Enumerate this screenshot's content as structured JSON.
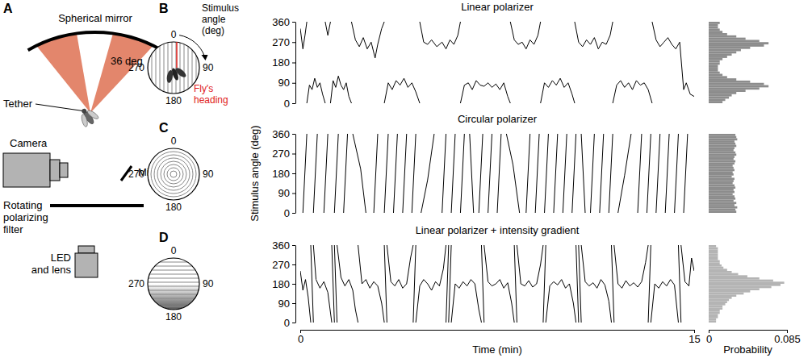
{
  "diagram": {
    "letter": "A",
    "spherical_mirror": "Spherical mirror",
    "wedge_angle": "36 deg",
    "tether": "Tether",
    "camera": "Camera",
    "mirror": "Mirror",
    "filter": [
      "Rotating",
      "polarizing",
      "filter"
    ],
    "led": [
      "LED",
      "and lens"
    ]
  },
  "insets": [
    {
      "letter": "B",
      "angle_labels": [
        0,
        90,
        180,
        270
      ],
      "stimulus_label": [
        "Stimulus",
        "angle",
        "(deg)"
      ],
      "heading_label": [
        "Fly's",
        "heading"
      ]
    },
    {
      "letter": "C",
      "angle_labels": [
        0,
        90,
        180,
        270
      ]
    },
    {
      "letter": "D",
      "angle_labels": [
        0,
        90,
        180,
        270
      ]
    }
  ],
  "chart_data": [
    {
      "type": "line",
      "title": "Linear polarizer",
      "color": "#000000",
      "tick_labels": "y",
      "xlim": [
        0,
        15
      ],
      "ylim": [
        0,
        360
      ],
      "yticks": [
        0,
        90,
        180,
        270,
        360
      ],
      "x": [
        0,
        0.1,
        0.18,
        0.25,
        0.25,
        0.25,
        0.35,
        0.45,
        0.55,
        0.65,
        0.75,
        0.85,
        0.95,
        0.95,
        0.95,
        1.05,
        1.15,
        1.15,
        1.15,
        1.25,
        1.35,
        1.45,
        1.55,
        1.65,
        1.75,
        1.85,
        1.95,
        1.95,
        1.95,
        2.1,
        2.25,
        2.4,
        2.55,
        2.7,
        2.85,
        2.95,
        3.1,
        3.2,
        3.2,
        3.2,
        3.35,
        3.5,
        3.65,
        3.8,
        3.95,
        4.1,
        4.25,
        4.4,
        4.55,
        4.55,
        4.55,
        4.7,
        4.85,
        5,
        5.2,
        5.4,
        5.55,
        5.7,
        5.85,
        6,
        6.1,
        6.1,
        6.1,
        6.25,
        6.4,
        6.55,
        6.7,
        6.85,
        7,
        7.15,
        7.3,
        7.45,
        7.6,
        7.75,
        7.9,
        8,
        8,
        8,
        8.15,
        8.3,
        8.45,
        8.6,
        8.75,
        8.9,
        9.05,
        9.15,
        9.15,
        9.15,
        9.3,
        9.45,
        9.6,
        9.75,
        9.9,
        10.05,
        10.2,
        10.35,
        10.45,
        10.45,
        10.45,
        10.6,
        10.75,
        10.9,
        11.05,
        11.2,
        11.35,
        11.5,
        11.65,
        11.8,
        11.9,
        11.9,
        11.9,
        12.05,
        12.2,
        12.35,
        12.5,
        12.65,
        12.8,
        12.95,
        13.1,
        13.25,
        13.4,
        13.4,
        13.4,
        13.55,
        13.7,
        13.85,
        14,
        14.15,
        14.3,
        14.45,
        14.6,
        14.7,
        14.85,
        15
      ],
      "values": [
        330,
        240,
        300,
        360,
        null,
        0,
        80,
        60,
        110,
        70,
        90,
        40,
        0,
        null,
        360,
        300,
        360,
        null,
        0,
        100,
        70,
        120,
        80,
        60,
        90,
        30,
        0,
        null,
        360,
        280,
        250,
        290,
        240,
        270,
        200,
        260,
        330,
        360,
        null,
        0,
        90,
        60,
        100,
        80,
        110,
        70,
        90,
        50,
        0,
        null,
        360,
        270,
        260,
        280,
        250,
        270,
        240,
        280,
        260,
        300,
        360,
        null,
        0,
        80,
        90,
        60,
        100,
        80,
        75,
        90,
        70,
        85,
        60,
        90,
        30,
        0,
        null,
        360,
        280,
        260,
        270,
        240,
        280,
        260,
        300,
        360,
        null,
        0,
        90,
        70,
        100,
        80,
        110,
        70,
        90,
        40,
        0,
        null,
        360,
        270,
        250,
        280,
        260,
        290,
        240,
        270,
        260,
        300,
        360,
        null,
        0,
        80,
        100,
        70,
        90,
        60,
        100,
        80,
        90,
        60,
        0,
        null,
        360,
        280,
        250,
        270,
        290,
        260,
        240,
        270,
        60,
        90,
        40,
        30
      ]
    },
    {
      "type": "histogram",
      "orientation": "horizontal",
      "color": "#8c8c8c",
      "tick_labels": false,
      "xlim": [
        0,
        0.085
      ],
      "ylim": [
        0,
        360
      ],
      "bins": [
        0,
        10,
        20,
        30,
        40,
        50,
        60,
        70,
        80,
        90,
        100,
        110,
        120,
        130,
        140,
        150,
        160,
        170,
        180,
        190,
        200,
        210,
        220,
        230,
        240,
        250,
        260,
        270,
        280,
        290,
        300,
        310,
        320,
        330,
        340,
        350,
        360
      ],
      "values": [
        0.015,
        0.018,
        0.022,
        0.025,
        0.03,
        0.04,
        0.055,
        0.065,
        0.06,
        0.045,
        0.03,
        0.02,
        0.015,
        0.012,
        0.01,
        0.01,
        0.01,
        0.012,
        0.012,
        0.015,
        0.02,
        0.025,
        0.03,
        0.035,
        0.045,
        0.06,
        0.065,
        0.055,
        0.04,
        0.03,
        0.02,
        0.015,
        0.012,
        0.01,
        0.01,
        0.012
      ]
    },
    {
      "type": "line",
      "title": "Circular polarizer",
      "ylabel": "Stimulus angle (deg)",
      "color": "#000000",
      "tick_labels": "y",
      "xlim": [
        0,
        15
      ],
      "ylim": [
        0,
        360
      ],
      "yticks": [
        0,
        90,
        180,
        270,
        360
      ],
      "x": [
        0.1,
        0.25,
        0.25,
        0.5,
        0.65,
        0.65,
        0.9,
        1.05,
        1.05,
        1.3,
        1.45,
        1.45,
        1.65,
        1.8,
        1.8,
        2,
        2.3,
        2.5,
        2.5,
        2.8,
        2.95,
        2.95,
        3.2,
        3.35,
        3.35,
        3.55,
        3.7,
        3.7,
        3.9,
        4.05,
        4.05,
        4.25,
        4.4,
        4.4,
        4.6,
        4.85,
        5.1,
        5.1,
        5.4,
        5.55,
        5.55,
        5.75,
        5.9,
        5.9,
        6.1,
        6.25,
        6.25,
        6.45,
        6.6,
        6.6,
        6.8,
        6.95,
        6.95,
        7.15,
        7.3,
        7.3,
        7.5,
        7.65,
        7.65,
        7.85,
        8.1,
        8.35,
        8.35,
        8.6,
        8.75,
        8.75,
        8.95,
        9.1,
        9.1,
        9.3,
        9.45,
        9.45,
        9.65,
        9.8,
        9.8,
        10,
        10.15,
        10.15,
        10.35,
        10.5,
        10.5,
        10.7,
        10.85,
        10.85,
        11.05,
        11.2,
        11.2,
        11.4,
        11.55,
        11.55,
        11.75,
        11.9,
        11.9,
        12.1,
        12.35,
        12.6,
        12.6,
        12.85,
        13,
        13,
        13.2,
        13.35,
        13.35,
        13.55,
        13.7,
        13.7,
        13.9,
        14.05,
        14.05,
        14.25,
        14.4,
        14.4,
        14.6,
        14.75
      ],
      "values": [
        0,
        360,
        null,
        0,
        360,
        null,
        0,
        360,
        null,
        0,
        360,
        null,
        0,
        360,
        null,
        360,
        200,
        0,
        null,
        0,
        360,
        null,
        0,
        360,
        null,
        0,
        360,
        null,
        0,
        360,
        null,
        0,
        360,
        null,
        0,
        150,
        360,
        null,
        0,
        360,
        null,
        0,
        360,
        null,
        0,
        360,
        null,
        360,
        0,
        null,
        0,
        360,
        null,
        0,
        360,
        null,
        0,
        360,
        null,
        360,
        220,
        0,
        null,
        0,
        360,
        null,
        0,
        360,
        null,
        0,
        360,
        null,
        0,
        360,
        null,
        0,
        360,
        null,
        0,
        360,
        null,
        360,
        0,
        null,
        0,
        360,
        null,
        0,
        360,
        null,
        0,
        360,
        null,
        0,
        170,
        360,
        null,
        0,
        360,
        null,
        0,
        360,
        null,
        0,
        360,
        null,
        0,
        360,
        null,
        0,
        360,
        null,
        0,
        360
      ]
    },
    {
      "type": "histogram",
      "orientation": "horizontal",
      "color": "#8c8c8c",
      "tick_labels": false,
      "xlim": [
        0,
        0.085
      ],
      "ylim": [
        0,
        360
      ],
      "bins": [
        0,
        10,
        20,
        30,
        40,
        50,
        60,
        70,
        80,
        90,
        100,
        110,
        120,
        130,
        140,
        150,
        160,
        170,
        180,
        190,
        200,
        210,
        220,
        230,
        240,
        250,
        260,
        270,
        280,
        290,
        300,
        310,
        320,
        330,
        340,
        350,
        360
      ],
      "values": [
        0.03,
        0.029,
        0.031,
        0.028,
        0.03,
        0.027,
        0.029,
        0.028,
        0.026,
        0.028,
        0.027,
        0.029,
        0.028,
        0.026,
        0.027,
        0.028,
        0.025,
        0.027,
        0.026,
        0.028,
        0.027,
        0.026,
        0.028,
        0.029,
        0.027,
        0.028,
        0.03,
        0.029,
        0.027,
        0.028,
        0.03,
        0.029,
        0.028,
        0.031,
        0.03,
        0.029
      ]
    },
    {
      "type": "line",
      "title": "Linear polarizer + intensity gradient",
      "xlabel": "Time (min)",
      "color": "#000000",
      "xlim": [
        0,
        15
      ],
      "ylim": [
        0,
        360
      ],
      "xticks": [
        0,
        15
      ],
      "yticks": [
        0,
        90,
        180,
        270,
        360
      ],
      "x": [
        0,
        0.1,
        0.2,
        0.3,
        0.4,
        0.4,
        0.4,
        0.5,
        0.5,
        0.5,
        0.6,
        0.75,
        0.9,
        1.05,
        1.2,
        1.2,
        1.2,
        1.3,
        1.3,
        1.3,
        1.4,
        1.4,
        1.4,
        1.55,
        1.7,
        1.85,
        2,
        2.1,
        2.2,
        2.2,
        2.2,
        2.35,
        2.5,
        2.65,
        2.8,
        2.95,
        3.1,
        3.2,
        3.2,
        3.2,
        3.3,
        3.3,
        3.3,
        3.45,
        3.6,
        3.75,
        3.9,
        4.05,
        4.2,
        4.3,
        4.3,
        4.3,
        4.4,
        4.4,
        4.4,
        4.55,
        4.7,
        4.85,
        5,
        5.15,
        5.3,
        5.45,
        5.55,
        5.55,
        5.55,
        5.65,
        5.65,
        5.65,
        5.75,
        5.75,
        5.75,
        5.9,
        6.05,
        6.2,
        6.35,
        6.5,
        6.65,
        6.8,
        6.9,
        6.9,
        6.9,
        7,
        7,
        7,
        7.15,
        7.3,
        7.45,
        7.6,
        7.75,
        7.9,
        8.05,
        8.15,
        8.15,
        8.15,
        8.25,
        8.25,
        8.25,
        8.4,
        8.55,
        8.7,
        8.85,
        9,
        9.15,
        9.25,
        9.25,
        9.25,
        9.35,
        9.35,
        9.35,
        9.5,
        9.65,
        9.8,
        9.95,
        10.1,
        10.25,
        10.4,
        10.5,
        10.5,
        10.5,
        10.6,
        10.6,
        10.6,
        10.7,
        10.7,
        10.7,
        10.85,
        11,
        11.15,
        11.3,
        11.45,
        11.6,
        11.75,
        11.85,
        11.85,
        11.85,
        11.95,
        11.95,
        11.95,
        12.1,
        12.25,
        12.4,
        12.55,
        12.7,
        12.85,
        13,
        13.15,
        13.25,
        13.25,
        13.25,
        13.35,
        13.35,
        13.35,
        13.5,
        13.65,
        13.8,
        13.95,
        14.1,
        14.25,
        14.4,
        14.4,
        14.4,
        14.5,
        14.5,
        14.5,
        14.65,
        14.8,
        14.9,
        15
      ],
      "values": [
        240,
        150,
        200,
        120,
        0,
        null,
        360,
        0,
        null,
        360,
        200,
        160,
        190,
        140,
        0,
        null,
        360,
        0,
        null,
        360,
        0,
        null,
        360,
        210,
        170,
        200,
        150,
        60,
        0,
        null,
        360,
        180,
        200,
        160,
        190,
        170,
        90,
        0,
        null,
        360,
        0,
        null,
        360,
        190,
        170,
        200,
        160,
        180,
        300,
        360,
        null,
        0,
        360,
        null,
        0,
        170,
        200,
        180,
        150,
        190,
        170,
        250,
        360,
        null,
        0,
        360,
        null,
        0,
        360,
        null,
        0,
        180,
        160,
        190,
        170,
        200,
        180,
        60,
        0,
        null,
        360,
        0,
        null,
        360,
        190,
        170,
        180,
        200,
        160,
        185,
        90,
        0,
        null,
        360,
        0,
        null,
        360,
        180,
        170,
        195,
        165,
        180,
        270,
        360,
        null,
        0,
        360,
        null,
        0,
        170,
        190,
        175,
        200,
        160,
        180,
        90,
        0,
        null,
        360,
        0,
        null,
        360,
        0,
        null,
        360,
        190,
        170,
        185,
        160,
        200,
        175,
        100,
        0,
        null,
        360,
        0,
        null,
        360,
        180,
        160,
        195,
        170,
        185,
        165,
        190,
        280,
        360,
        null,
        0,
        360,
        null,
        0,
        180,
        160,
        190,
        170,
        200,
        175,
        0,
        null,
        360,
        0,
        null,
        360,
        190,
        170,
        300,
        240
      ]
    },
    {
      "type": "histogram",
      "orientation": "horizontal",
      "color": "#b4b4b4",
      "tick_labels": "x",
      "xlabel": "Probability",
      "xlim": [
        0,
        0.085
      ],
      "ylim": [
        0,
        360
      ],
      "xticks": [
        0,
        0.085
      ],
      "bins": [
        0,
        10,
        20,
        30,
        40,
        50,
        60,
        70,
        80,
        90,
        100,
        110,
        120,
        130,
        140,
        150,
        160,
        170,
        180,
        190,
        200,
        210,
        220,
        230,
        240,
        250,
        260,
        270,
        280,
        290,
        300,
        310,
        320,
        330,
        340,
        350,
        360
      ],
      "values": [
        0.008,
        0.008,
        0.01,
        0.01,
        0.012,
        0.012,
        0.015,
        0.015,
        0.018,
        0.02,
        0.022,
        0.025,
        0.03,
        0.038,
        0.045,
        0.055,
        0.068,
        0.078,
        0.082,
        0.07,
        0.055,
        0.042,
        0.032,
        0.025,
        0.02,
        0.016,
        0.014,
        0.012,
        0.012,
        0.01,
        0.01,
        0.01,
        0.01,
        0.01,
        0.01,
        0.008
      ]
    }
  ]
}
